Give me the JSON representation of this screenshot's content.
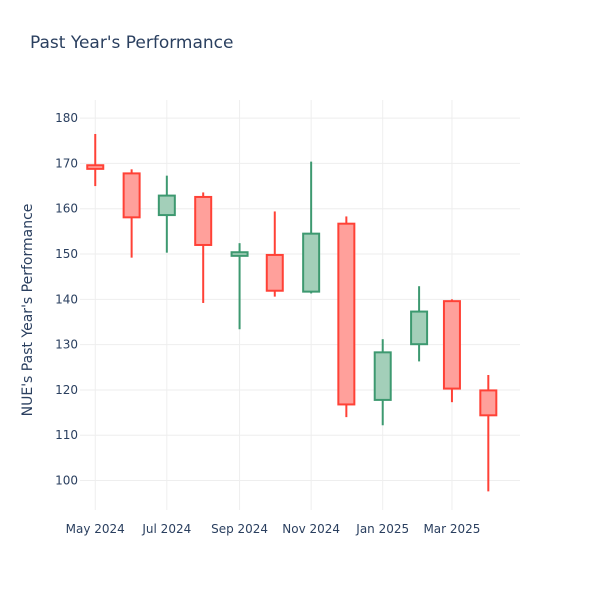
{
  "chart_data": {
    "type": "candlestick",
    "title": "Past Year's Performance",
    "xlabel": "",
    "ylabel": "NUE's Past Year's Performance",
    "ylim": [
      93.5,
      184
    ],
    "yticks": [
      100,
      110,
      120,
      130,
      140,
      150,
      160,
      170,
      180
    ],
    "xlim": [
      "2024-04-18",
      "2025-04-28"
    ],
    "xticks": [
      {
        "date": "2024-05-01",
        "label": "May 2024"
      },
      {
        "date": "2024-07-01",
        "label": "Jul 2024"
      },
      {
        "date": "2024-09-01",
        "label": "Sep 2024"
      },
      {
        "date": "2024-11-01",
        "label": "Nov 2024"
      },
      {
        "date": "2025-01-01",
        "label": "Jan 2025"
      },
      {
        "date": "2025-03-01",
        "label": "Mar 2025"
      }
    ],
    "grid": true,
    "colors": {
      "increasing_line": "#3d9970",
      "increasing_fill": "#a3cfb9",
      "decreasing_line": "#ff4136",
      "decreasing_fill": "#ffa09b",
      "grid": "#eeeeee",
      "text": "#2a3f5f"
    },
    "candles": [
      {
        "date": "2024-05-01",
        "open": 169.6,
        "high": 176.5,
        "low": 165.0,
        "close": 168.8
      },
      {
        "date": "2024-06-01",
        "open": 167.8,
        "high": 168.7,
        "low": 149.2,
        "close": 158.1
      },
      {
        "date": "2024-07-01",
        "open": 158.6,
        "high": 167.3,
        "low": 150.3,
        "close": 162.9
      },
      {
        "date": "2024-08-01",
        "open": 162.6,
        "high": 163.6,
        "low": 139.2,
        "close": 152.0
      },
      {
        "date": "2024-09-01",
        "open": 149.6,
        "high": 152.4,
        "low": 133.4,
        "close": 150.4
      },
      {
        "date": "2024-10-01",
        "open": 149.8,
        "high": 159.4,
        "low": 140.6,
        "close": 141.9
      },
      {
        "date": "2024-11-01",
        "open": 141.7,
        "high": 170.4,
        "low": 141.3,
        "close": 154.5
      },
      {
        "date": "2024-12-01",
        "open": 156.7,
        "high": 158.3,
        "low": 114.0,
        "close": 116.8
      },
      {
        "date": "2025-01-01",
        "open": 117.8,
        "high": 131.2,
        "low": 112.2,
        "close": 128.3
      },
      {
        "date": "2025-02-01",
        "open": 130.1,
        "high": 142.9,
        "low": 126.3,
        "close": 137.3
      },
      {
        "date": "2025-03-01",
        "open": 139.6,
        "high": 140.0,
        "low": 117.3,
        "close": 120.3
      },
      {
        "date": "2025-04-01",
        "open": 119.9,
        "high": 123.3,
        "low": 97.6,
        "close": 114.4
      }
    ]
  }
}
